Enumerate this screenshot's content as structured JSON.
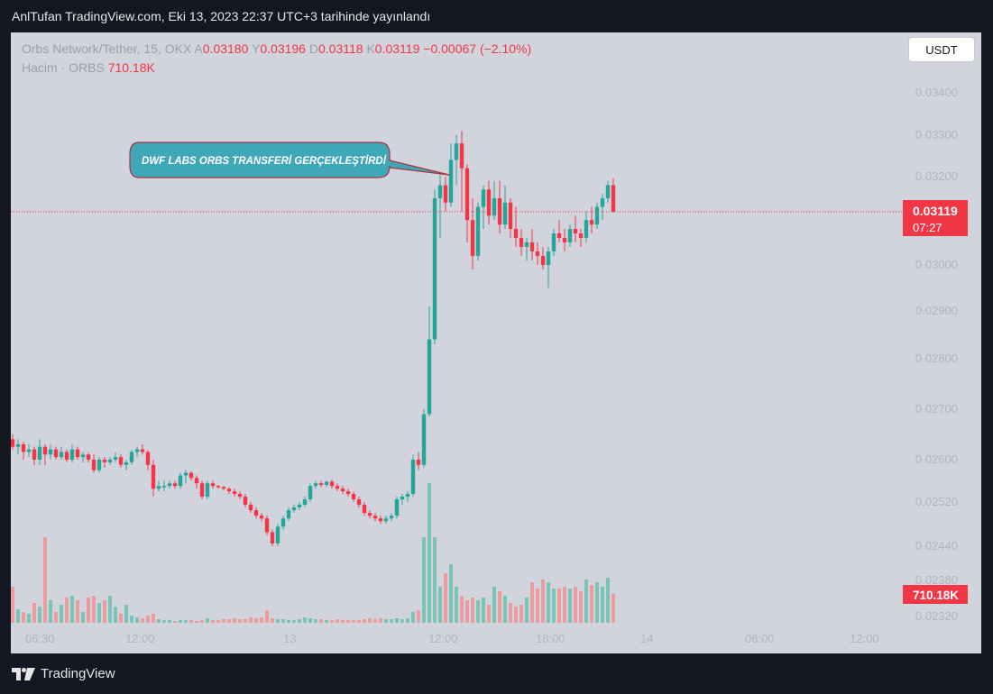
{
  "header": {
    "publish_text": "AnlTufan TradingView.com, Eki 13, 2023 22:37 UTC+3 tarihinde yayınlandı"
  },
  "legend": {
    "symbol": "Orbs Network/Tether, 15, OKX",
    "open_label": "A",
    "open": "0.03180",
    "high_label": "Y",
    "high": "0.03196",
    "low_label": "D",
    "low": "0.03118",
    "close_label": "K",
    "close": "0.03119",
    "change": "−0.00067 (−2.10%)",
    "volume_label": "Hacim · ORBS",
    "volume": "710.18K"
  },
  "currency_button": "USDT",
  "annotation": "DWF LABS ORBS TRANSFERİ GERÇEKLEŞTİRDİ",
  "price_badge": {
    "price": "0.03119",
    "timer": "07:27"
  },
  "volume_badge": "710.18K",
  "footer": {
    "brand": "TradingView"
  },
  "colors": {
    "up": "#26a69a",
    "down": "#f23645",
    "up_volume": "#7cc3b8",
    "down_volume": "#eb9c9f",
    "background": "#d1d4dc",
    "annotation_fill": "#3fa8b8"
  },
  "chart_data": {
    "type": "candlestick",
    "title": "Orbs Network/Tether, 15, OKX",
    "y_tick_labels": [
      "0.03400",
      "0.03300",
      "0.03200",
      "0.03000",
      "0.02900",
      "0.02800",
      "0.02700",
      "0.02600",
      "0.02520",
      "0.02440",
      "0.02380",
      "0.02320"
    ],
    "x_tick_labels": [
      "06:30",
      "12:00",
      "13",
      "12:00",
      "18:00",
      "14",
      "06:00",
      "12:00"
    ],
    "scale": "log",
    "last_price": 0.03119,
    "ohlc_columns": [
      "open",
      "high",
      "low",
      "close",
      "volume"
    ],
    "candles": [
      [
        0.0264,
        0.0265,
        0.0262,
        0.02625,
        40
      ],
      [
        0.02625,
        0.0264,
        0.0261,
        0.0263,
        15
      ],
      [
        0.0263,
        0.02635,
        0.026,
        0.02615,
        12
      ],
      [
        0.02615,
        0.0263,
        0.02605,
        0.0262,
        10
      ],
      [
        0.0262,
        0.02625,
        0.0259,
        0.026,
        22
      ],
      [
        0.026,
        0.0264,
        0.0259,
        0.02625,
        18
      ],
      [
        0.02625,
        0.0263,
        0.0259,
        0.0261,
        95
      ],
      [
        0.0261,
        0.0263,
        0.026,
        0.0262,
        25
      ],
      [
        0.0262,
        0.02625,
        0.026,
        0.02605,
        12
      ],
      [
        0.02605,
        0.02625,
        0.026,
        0.02615,
        20
      ],
      [
        0.02615,
        0.0262,
        0.02595,
        0.026,
        28
      ],
      [
        0.026,
        0.0263,
        0.02595,
        0.0262,
        30
      ],
      [
        0.0262,
        0.02625,
        0.026,
        0.02605,
        25
      ],
      [
        0.02605,
        0.02615,
        0.02595,
        0.0261,
        12
      ],
      [
        0.0261,
        0.02615,
        0.02595,
        0.026,
        28
      ],
      [
        0.026,
        0.0261,
        0.02575,
        0.0258,
        30
      ],
      [
        0.0258,
        0.02605,
        0.02575,
        0.026,
        22
      ],
      [
        0.026,
        0.02605,
        0.02585,
        0.02595,
        25
      ],
      [
        0.02595,
        0.02605,
        0.0259,
        0.026,
        30
      ],
      [
        0.026,
        0.02615,
        0.02595,
        0.02605,
        18
      ],
      [
        0.02605,
        0.0261,
        0.02585,
        0.0259,
        10
      ],
      [
        0.0259,
        0.026,
        0.0258,
        0.02595,
        20
      ],
      [
        0.02595,
        0.0262,
        0.0259,
        0.02615,
        8
      ],
      [
        0.02615,
        0.02625,
        0.02605,
        0.0262,
        6
      ],
      [
        0.0262,
        0.0263,
        0.0261,
        0.02615,
        5
      ],
      [
        0.02615,
        0.02618,
        0.0258,
        0.0259,
        8
      ],
      [
        0.0259,
        0.026,
        0.0253,
        0.02545,
        10
      ],
      [
        0.02545,
        0.0256,
        0.0254,
        0.0255,
        4
      ],
      [
        0.0255,
        0.0256,
        0.0254,
        0.0255,
        3
      ],
      [
        0.0255,
        0.0256,
        0.02545,
        0.02555,
        3
      ],
      [
        0.02555,
        0.0256,
        0.02545,
        0.0255,
        2
      ],
      [
        0.0255,
        0.02575,
        0.02545,
        0.0257,
        3
      ],
      [
        0.0257,
        0.0258,
        0.02555,
        0.02575,
        3
      ],
      [
        0.02575,
        0.02578,
        0.0256,
        0.02565,
        3
      ],
      [
        0.02565,
        0.0257,
        0.02545,
        0.02555,
        2
      ],
      [
        0.02555,
        0.0256,
        0.02525,
        0.0253,
        3
      ],
      [
        0.0253,
        0.0256,
        0.02525,
        0.02555,
        5
      ],
      [
        0.02555,
        0.0256,
        0.02545,
        0.0255,
        3
      ],
      [
        0.0255,
        0.02552,
        0.02545,
        0.02548,
        3
      ],
      [
        0.02548,
        0.0255,
        0.02542,
        0.02545,
        4
      ],
      [
        0.02545,
        0.02548,
        0.02535,
        0.0254,
        4
      ],
      [
        0.0254,
        0.02545,
        0.0253,
        0.02535,
        5
      ],
      [
        0.02535,
        0.0254,
        0.02525,
        0.0253,
        4
      ],
      [
        0.0253,
        0.02535,
        0.0251,
        0.02515,
        4
      ],
      [
        0.02515,
        0.0252,
        0.025,
        0.02505,
        6
      ],
      [
        0.02505,
        0.0251,
        0.0249,
        0.02495,
        5
      ],
      [
        0.02495,
        0.025,
        0.02485,
        0.0249,
        6
      ],
      [
        0.0249,
        0.02495,
        0.0246,
        0.02465,
        14
      ],
      [
        0.02465,
        0.0247,
        0.0244,
        0.02445,
        5
      ],
      [
        0.02445,
        0.0248,
        0.0244,
        0.02475,
        4
      ],
      [
        0.02475,
        0.02495,
        0.0247,
        0.0249,
        4
      ],
      [
        0.0249,
        0.0251,
        0.02485,
        0.02505,
        3
      ],
      [
        0.02505,
        0.02515,
        0.025,
        0.0251,
        3
      ],
      [
        0.0251,
        0.0252,
        0.02505,
        0.02515,
        4
      ],
      [
        0.02515,
        0.0253,
        0.0251,
        0.02525,
        6
      ],
      [
        0.02525,
        0.02555,
        0.0252,
        0.0255,
        5
      ],
      [
        0.0255,
        0.0256,
        0.02545,
        0.02555,
        4
      ],
      [
        0.02555,
        0.0256,
        0.02548,
        0.02552,
        4
      ],
      [
        0.02552,
        0.0256,
        0.02548,
        0.02558,
        3
      ],
      [
        0.02558,
        0.02562,
        0.02545,
        0.0255,
        3
      ],
      [
        0.0255,
        0.02555,
        0.0254,
        0.02545,
        4
      ],
      [
        0.02545,
        0.0255,
        0.02535,
        0.0254,
        3
      ],
      [
        0.0254,
        0.02545,
        0.0253,
        0.02535,
        3
      ],
      [
        0.02535,
        0.0254,
        0.0252,
        0.02525,
        3
      ],
      [
        0.02525,
        0.0253,
        0.0251,
        0.02515,
        3
      ],
      [
        0.02515,
        0.0252,
        0.02495,
        0.025,
        4
      ],
      [
        0.025,
        0.02505,
        0.0249,
        0.02495,
        5
      ],
      [
        0.02495,
        0.025,
        0.02485,
        0.0249,
        4
      ],
      [
        0.0249,
        0.02495,
        0.0248,
        0.02485,
        5
      ],
      [
        0.02485,
        0.02495,
        0.0248,
        0.0249,
        4
      ],
      [
        0.0249,
        0.025,
        0.02485,
        0.02495,
        4
      ],
      [
        0.02495,
        0.0253,
        0.0249,
        0.02525,
        5
      ],
      [
        0.02525,
        0.02535,
        0.02515,
        0.0253,
        4
      ],
      [
        0.0253,
        0.0254,
        0.0252,
        0.02535,
        5
      ],
      [
        0.02535,
        0.0261,
        0.0253,
        0.026,
        12
      ],
      [
        0.026,
        0.02615,
        0.0258,
        0.0259,
        14
      ],
      [
        0.0259,
        0.027,
        0.02585,
        0.0269,
        95
      ],
      [
        0.0269,
        0.0291,
        0.02685,
        0.0284,
        155
      ],
      [
        0.0284,
        0.0317,
        0.0283,
        0.0315,
        95
      ],
      [
        0.0315,
        0.0321,
        0.0306,
        0.0318,
        40
      ],
      [
        0.0318,
        0.032,
        0.0312,
        0.0314,
        55
      ],
      [
        0.0314,
        0.0328,
        0.0313,
        0.0324,
        65
      ],
      [
        0.0324,
        0.033,
        0.0318,
        0.0328,
        40
      ],
      [
        0.0328,
        0.0331,
        0.0312,
        0.0322,
        30
      ],
      [
        0.0322,
        0.0323,
        0.0305,
        0.031,
        25
      ],
      [
        0.031,
        0.0315,
        0.0299,
        0.0302,
        28
      ],
      [
        0.0302,
        0.0314,
        0.0301,
        0.0313,
        25
      ],
      [
        0.0313,
        0.0318,
        0.0308,
        0.0317,
        28
      ],
      [
        0.0317,
        0.0319,
        0.0309,
        0.0311,
        20
      ],
      [
        0.0311,
        0.0319,
        0.031,
        0.0315,
        40
      ],
      [
        0.0315,
        0.0319,
        0.0307,
        0.0309,
        35
      ],
      [
        0.0309,
        0.0318,
        0.0308,
        0.0314,
        30
      ],
      [
        0.0314,
        0.0315,
        0.0306,
        0.0308,
        22
      ],
      [
        0.0308,
        0.0313,
        0.0304,
        0.0306,
        18
      ],
      [
        0.0306,
        0.0308,
        0.0302,
        0.0304,
        20
      ],
      [
        0.0304,
        0.0306,
        0.0301,
        0.0305,
        28
      ],
      [
        0.0305,
        0.0308,
        0.0301,
        0.0303,
        45
      ],
      [
        0.0303,
        0.0305,
        0.03,
        0.0302,
        38
      ],
      [
        0.0302,
        0.0304,
        0.0299,
        0.03,
        48
      ],
      [
        0.03,
        0.0304,
        0.0295,
        0.0303,
        45
      ],
      [
        0.0303,
        0.0308,
        0.0302,
        0.0307,
        38
      ],
      [
        0.0307,
        0.031,
        0.0305,
        0.0306,
        38
      ],
      [
        0.0306,
        0.0308,
        0.0303,
        0.0305,
        40
      ],
      [
        0.0305,
        0.0309,
        0.0304,
        0.0308,
        38
      ],
      [
        0.0308,
        0.0311,
        0.0305,
        0.0307,
        40
      ],
      [
        0.0307,
        0.0308,
        0.0304,
        0.0306,
        35
      ],
      [
        0.0306,
        0.0312,
        0.0305,
        0.031,
        48
      ],
      [
        0.031,
        0.0313,
        0.0307,
        0.0309,
        42
      ],
      [
        0.0309,
        0.0314,
        0.0308,
        0.0313,
        45
      ],
      [
        0.0313,
        0.0316,
        0.031,
        0.0315,
        40
      ],
      [
        0.0315,
        0.0319,
        0.0314,
        0.0318,
        50
      ],
      [
        0.0318,
        0.03196,
        0.03118,
        0.03119,
        32
      ]
    ]
  }
}
